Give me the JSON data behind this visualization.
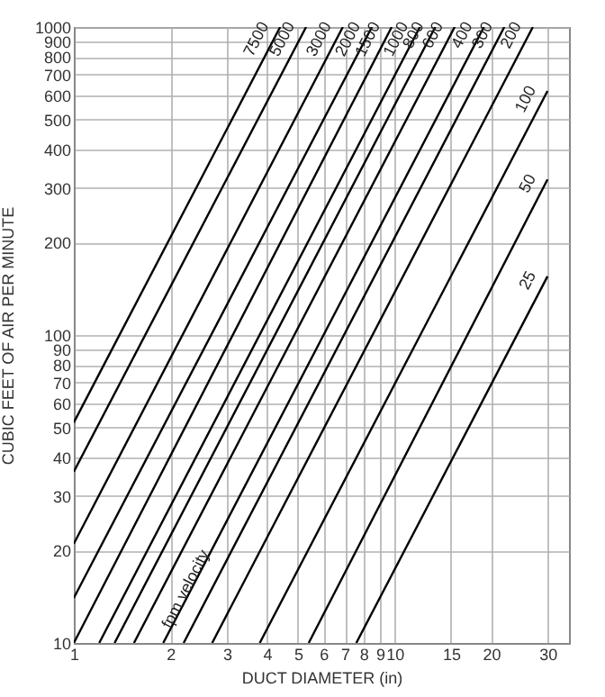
{
  "chart_data": {
    "type": "line",
    "xlabel": "DUCT DIAMETER (in)",
    "ylabel": "CUBIC FEET OF AIR PER MINUTE",
    "log": "xy",
    "grid": true,
    "marker": "none",
    "line_style": "solid",
    "xlim": [
      1,
      35
    ],
    "xticks": [
      1,
      2,
      3,
      4,
      5,
      6,
      7,
      8,
      9,
      10,
      15,
      20,
      30
    ],
    "ylim": [
      10,
      1000
    ],
    "yticks": [
      10,
      20,
      30,
      40,
      50,
      60,
      70,
      80,
      90,
      100,
      200,
      300,
      400,
      500,
      600,
      700,
      800,
      900,
      1000
    ],
    "annotations": [
      "fpm velocity"
    ],
    "series": [
      {
        "name": "7500",
        "color": "#000000",
        "x": [
          1,
          4.4
        ],
        "values": [
          52,
          1000
        ]
      },
      {
        "name": "5000",
        "color": "#000000",
        "x": [
          1,
          5.3
        ],
        "values": [
          36,
          1000
        ]
      },
      {
        "name": "3000",
        "color": "#000000",
        "x": [
          1,
          6.9
        ],
        "values": [
          21,
          1000
        ]
      },
      {
        "name": "2000",
        "color": "#000000",
        "x": [
          1,
          8.5
        ],
        "values": [
          14,
          1000
        ]
      },
      {
        "name": "1500",
        "color": "#000000",
        "x": [
          1,
          9.8
        ],
        "values": [
          10,
          1000
        ]
      },
      {
        "name": "1000",
        "color": "#000000",
        "x": [
          1.2,
          12
        ],
        "values": [
          10,
          1000
        ]
      },
      {
        "name": "800",
        "color": "#000000",
        "x": [
          1.34,
          13.4
        ],
        "values": [
          10,
          1000
        ]
      },
      {
        "name": "600",
        "color": "#000000",
        "x": [
          1.54,
          15.4
        ],
        "values": [
          10,
          1000
        ]
      },
      {
        "name": "400",
        "color": "#000000",
        "x": [
          1.9,
          19
        ],
        "values": [
          10,
          1000
        ]
      },
      {
        "name": "300",
        "color": "#000000",
        "x": [
          2.2,
          22
        ],
        "values": [
          10,
          1000
        ]
      },
      {
        "name": "200",
        "color": "#000000",
        "x": [
          2.7,
          27
        ],
        "values": [
          10,
          1000
        ]
      },
      {
        "name": "100",
        "color": "#000000",
        "x": [
          3.8,
          30
        ],
        "values": [
          10,
          620
        ]
      },
      {
        "name": "50",
        "color": "#000000",
        "x": [
          5.4,
          30
        ],
        "values": [
          10,
          320
        ]
      },
      {
        "name": "25",
        "color": "#000000",
        "x": [
          7.6,
          30
        ],
        "values": [
          10,
          155
        ]
      }
    ]
  }
}
